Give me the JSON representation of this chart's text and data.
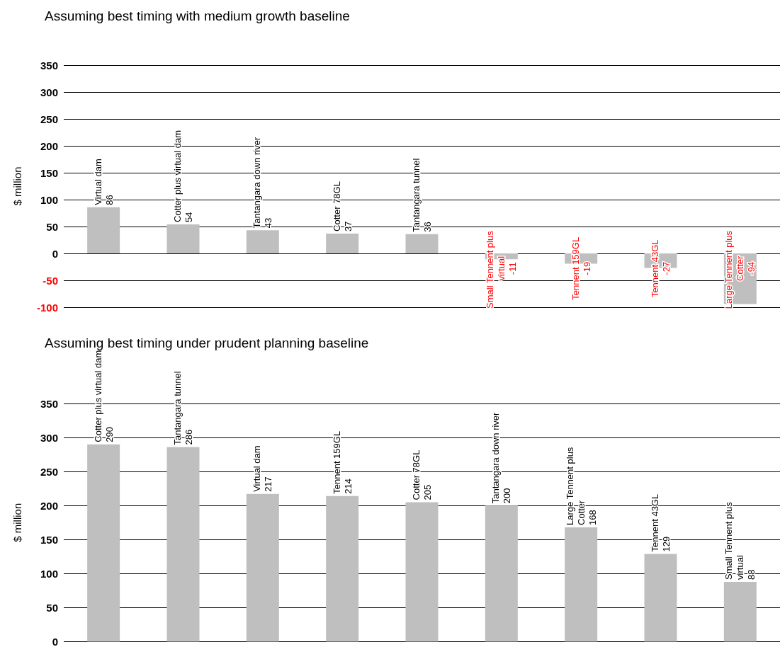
{
  "chart_data": [
    {
      "type": "bar",
      "title": "Assuming best timing with medium growth baseline",
      "ylabel": "$ million",
      "categories": [
        "Virtual dam",
        "Cotter plus virtual dam",
        "Tantangara down river",
        "Cotter 78GL",
        "Tantangara tunnel",
        "Small Tennent plus virtual",
        "Tennent 159GL",
        "Tennent 43GL",
        "Large Tennent plus Cotter"
      ],
      "values": [
        86,
        54,
        43,
        37,
        36,
        -11,
        -19,
        -27,
        -94
      ],
      "color": "#bfbfbf",
      "ylim": [
        -100,
        350
      ],
      "yticks": [
        -100,
        -50,
        0,
        50,
        100,
        150,
        200,
        250,
        300,
        350
      ],
      "grid": "y",
      "data_labels": true,
      "tick_labels": "y"
    },
    {
      "type": "bar",
      "title": "Assuming best timing under prudent planning baseline",
      "ylabel": "$ million",
      "categories": [
        "Cotter plus virtual dam",
        "Tantangara tunnel",
        "Virtual dam",
        "Tennent 159GL",
        "Cotter 78GL",
        "Tantangara down river",
        "Large Tennent plus Cotter",
        "Tennent 43GL",
        "Small Tennent plus virtual"
      ],
      "values": [
        290,
        286,
        217,
        214,
        205,
        200,
        168,
        129,
        88
      ],
      "color": "#bfbfbf",
      "ylim": [
        0,
        350
      ],
      "yticks": [
        0,
        50,
        100,
        150,
        200,
        250,
        300,
        350
      ],
      "grid": "y",
      "data_labels": true,
      "tick_labels": "y"
    }
  ]
}
